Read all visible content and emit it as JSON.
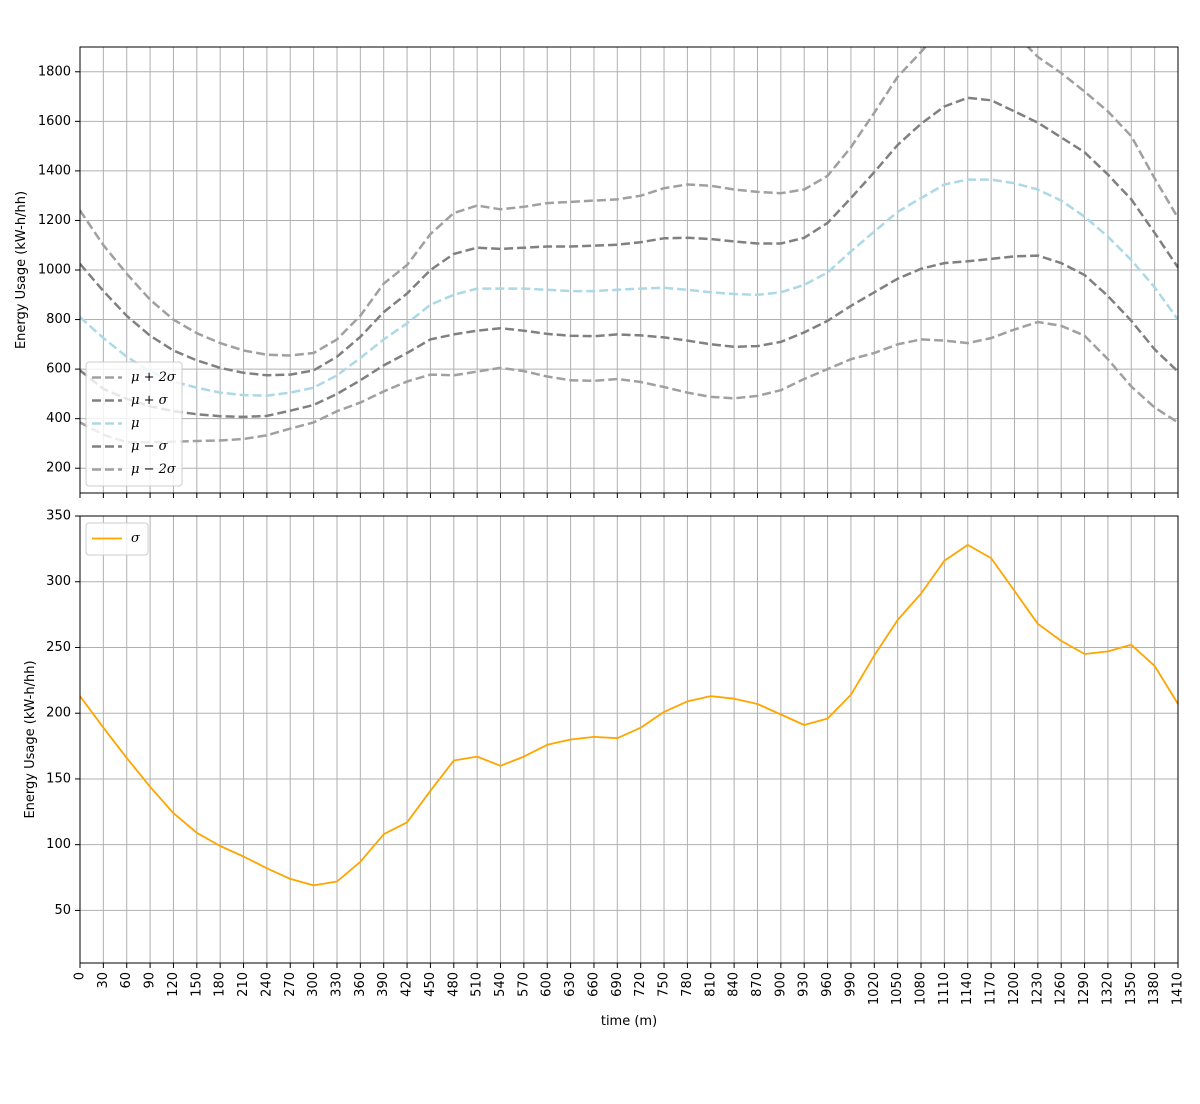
{
  "chart_data": [
    {
      "type": "line",
      "ylabel": "Energy Usage (kW-h/hh)",
      "xlabel": "",
      "ylim": [
        100,
        1900
      ],
      "xlim": [
        0,
        1410
      ],
      "yticks": [
        200,
        400,
        600,
        800,
        1000,
        1200,
        1400,
        1600,
        1800
      ],
      "grid": true,
      "legend_position": "lower-left",
      "x": [
        0,
        30,
        60,
        90,
        120,
        150,
        180,
        210,
        240,
        270,
        300,
        330,
        360,
        390,
        420,
        450,
        480,
        510,
        540,
        570,
        600,
        630,
        660,
        690,
        720,
        750,
        780,
        810,
        840,
        870,
        900,
        930,
        960,
        990,
        1020,
        1050,
        1080,
        1110,
        1140,
        1170,
        1200,
        1230,
        1260,
        1290,
        1320,
        1350,
        1380,
        1410
      ],
      "series": [
        {
          "name": "μ + 2σ",
          "color": "#a0a0a0",
          "style": "dashed",
          "values": [
            1240,
            1100,
            985,
            880,
            800,
            745,
            705,
            675,
            658,
            655,
            665,
            720,
            815,
            945,
            1020,
            1145,
            1230,
            1260,
            1245,
            1255,
            1270,
            1275,
            1280,
            1285,
            1300,
            1330,
            1345,
            1340,
            1325,
            1315,
            1310,
            1325,
            1380,
            1495,
            1635,
            1780,
            1880,
            1990,
            2020,
            2010,
            1955,
            1860,
            1795,
            1720,
            1640,
            1540,
            1370,
            1210
          ]
        },
        {
          "name": "μ + σ",
          "color": "#808080",
          "style": "dashed",
          "values": [
            1025,
            915,
            815,
            735,
            675,
            635,
            605,
            585,
            575,
            578,
            595,
            650,
            730,
            830,
            905,
            1000,
            1065,
            1090,
            1085,
            1090,
            1095,
            1095,
            1098,
            1102,
            1112,
            1128,
            1130,
            1125,
            1115,
            1107,
            1107,
            1130,
            1190,
            1290,
            1395,
            1505,
            1590,
            1660,
            1695,
            1685,
            1640,
            1595,
            1535,
            1475,
            1385,
            1285,
            1150,
            1010
          ]
        },
        {
          "name": "μ",
          "color": "#add8e6",
          "style": "dashed",
          "values": [
            810,
            725,
            650,
            590,
            550,
            525,
            505,
            495,
            493,
            505,
            525,
            575,
            645,
            720,
            785,
            860,
            900,
            925,
            925,
            925,
            920,
            915,
            915,
            920,
            925,
            928,
            920,
            910,
            903,
            900,
            910,
            940,
            990,
            1075,
            1155,
            1235,
            1290,
            1345,
            1365,
            1365,
            1350,
            1325,
            1280,
            1215,
            1135,
            1040,
            930,
            800
          ]
        },
        {
          "name": "μ − σ",
          "color": "#808080",
          "style": "dashed",
          "values": [
            595,
            520,
            480,
            450,
            430,
            418,
            410,
            407,
            411,
            432,
            455,
            500,
            555,
            615,
            665,
            720,
            740,
            755,
            765,
            755,
            742,
            735,
            733,
            740,
            736,
            728,
            715,
            700,
            690,
            693,
            710,
            748,
            795,
            855,
            910,
            965,
            1005,
            1028,
            1035,
            1045,
            1055,
            1058,
            1028,
            980,
            895,
            795,
            680,
            590
          ]
        },
        {
          "name": "μ − 2σ",
          "color": "#a0a0a0",
          "style": "dashed",
          "values": [
            385,
            335,
            305,
            305,
            307,
            310,
            312,
            318,
            333,
            360,
            385,
            430,
            465,
            510,
            550,
            578,
            575,
            590,
            605,
            592,
            570,
            555,
            553,
            560,
            548,
            528,
            505,
            488,
            482,
            492,
            515,
            560,
            600,
            640,
            665,
            700,
            720,
            715,
            705,
            725,
            760,
            790,
            775,
            735,
            640,
            530,
            445,
            385
          ]
        }
      ]
    },
    {
      "type": "line",
      "ylabel": "Energy Usage (kW-h/hh)",
      "xlabel": "time (m)",
      "ylim": [
        10,
        350
      ],
      "xlim": [
        0,
        1410
      ],
      "yticks": [
        50,
        100,
        150,
        200,
        250,
        300,
        350
      ],
      "xticks": [
        0,
        30,
        60,
        90,
        120,
        150,
        180,
        210,
        240,
        270,
        300,
        330,
        360,
        390,
        420,
        450,
        480,
        510,
        540,
        570,
        600,
        630,
        660,
        690,
        720,
        750,
        780,
        810,
        840,
        870,
        900,
        930,
        960,
        990,
        1020,
        1050,
        1080,
        1110,
        1140,
        1170,
        1200,
        1230,
        1260,
        1290,
        1320,
        1350,
        1380,
        1410
      ],
      "grid": true,
      "legend_position": "top-left",
      "x": [
        0,
        30,
        60,
        90,
        120,
        150,
        180,
        210,
        240,
        270,
        300,
        330,
        360,
        390,
        420,
        450,
        480,
        510,
        540,
        570,
        600,
        630,
        660,
        690,
        720,
        750,
        780,
        810,
        840,
        870,
        900,
        930,
        960,
        990,
        1020,
        1050,
        1080,
        1110,
        1140,
        1170,
        1200,
        1230,
        1260,
        1290,
        1320,
        1350,
        1380,
        1410
      ],
      "series": [
        {
          "name": "σ",
          "color": "#ffa500",
          "style": "solid",
          "values": [
            213,
            189,
            166,
            144,
            124,
            109,
            99,
            91,
            82,
            74,
            69,
            72,
            87,
            108,
            117,
            141,
            164,
            167,
            160,
            167,
            176,
            180,
            182,
            181,
            189,
            201,
            209,
            213,
            211,
            207,
            199,
            191,
            196,
            214,
            244,
            271,
            291,
            316,
            328,
            318,
            293,
            268,
            255,
            245,
            247,
            252,
            236,
            207
          ]
        }
      ]
    }
  ]
}
